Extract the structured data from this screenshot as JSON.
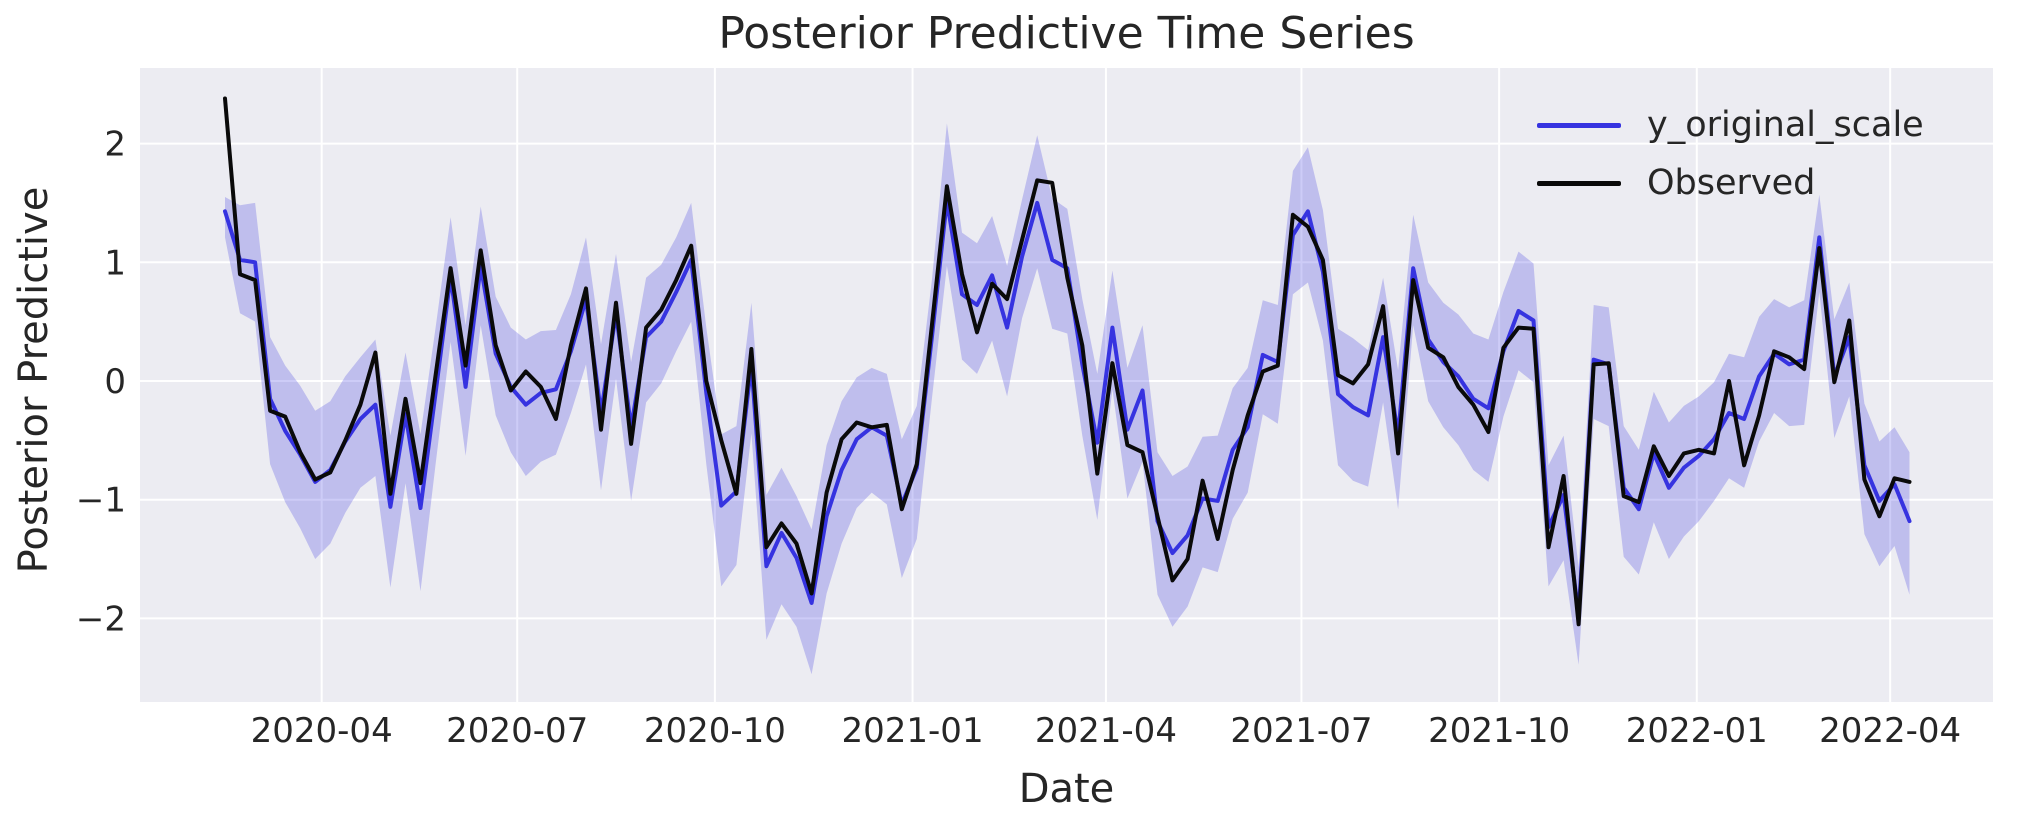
{
  "figure": {
    "title": "Posterior Predictive Time Series",
    "xlabel": "Date",
    "ylabel": "Posterior Predictive"
  },
  "legend": {
    "position": "upper right",
    "items": [
      {
        "label": "y_original_scale",
        "color": "#3633e0"
      },
      {
        "label": "Observed",
        "color": "#0a0a0a"
      }
    ]
  },
  "colors": {
    "plot_background": "#ececf2",
    "gridline": "#ffffff",
    "text": "#262626",
    "mean_line": "#3633e0",
    "observed_line": "#0a0a0a",
    "band_fill": "#3633e0"
  },
  "chart_data": {
    "type": "line",
    "title": "Posterior Predictive Time Series",
    "xlabel": "Date",
    "ylabel": "Posterior Predictive",
    "grid": true,
    "legend_position": "upper right",
    "x_start_date": "2020-02-16",
    "x_step_days": 7,
    "n_points": 113,
    "x_tick_dates": [
      "2020-04-01",
      "2020-07-01",
      "2020-10-01",
      "2021-01-01",
      "2021-04-01",
      "2021-07-01",
      "2021-10-01",
      "2022-01-01",
      "2022-04-01"
    ],
    "x_tick_labels": [
      "2020-04",
      "2020-07",
      "2020-10",
      "2021-01",
      "2021-04",
      "2021-07",
      "2021-10",
      "2022-01",
      "2022-04"
    ],
    "y_ticks": [
      -2,
      -1,
      0,
      1,
      2
    ],
    "y_tick_labels": [
      "−2",
      "−1",
      "0",
      "1",
      "2"
    ],
    "ylim": [
      -2.7,
      2.64
    ],
    "series": [
      {
        "name": "y_original_scale",
        "color": "#3633e0",
        "values": [
          1.43,
          1.02,
          1.0,
          -0.15,
          -0.42,
          -0.62,
          -0.85,
          -0.75,
          -0.51,
          -0.32,
          -0.2,
          -1.06,
          -0.28,
          -1.07,
          -0.1,
          0.88,
          -0.05,
          0.97,
          0.23,
          -0.05,
          -0.2,
          -0.1,
          -0.07,
          0.25,
          0.69,
          -0.27,
          0.57,
          -0.39,
          0.37,
          0.5,
          0.75,
          1.02,
          -0.1,
          -1.05,
          -0.93,
          0.14,
          -1.56,
          -1.28,
          -1.49,
          -1.87,
          -1.14,
          -0.75,
          -0.49,
          -0.39,
          -0.46,
          -1.04,
          -0.73,
          0.37,
          1.52,
          0.73,
          0.64,
          0.89,
          0.45,
          1.05,
          1.5,
          1.02,
          0.95,
          0.14,
          -0.52,
          0.45,
          -0.41,
          -0.08,
          -1.18,
          -1.45,
          -1.3,
          -0.99,
          -1.01,
          -0.58,
          -0.39,
          0.22,
          0.16,
          1.23,
          1.43,
          0.92,
          -0.11,
          -0.22,
          -0.29,
          0.37,
          -0.46,
          0.95,
          0.35,
          0.16,
          0.04,
          -0.15,
          -0.23,
          0.25,
          0.59,
          0.51,
          -1.23,
          -0.96,
          -1.97,
          0.18,
          0.14,
          -0.9,
          -1.08,
          -0.61,
          -0.9,
          -0.73,
          -0.63,
          -0.49,
          -0.27,
          -0.32,
          0.04,
          0.23,
          0.14,
          0.18,
          1.21,
          0.04,
          0.37,
          -0.71,
          -1.01,
          -0.87,
          -1.18
        ]
      },
      {
        "name": "Observed",
        "color": "#0a0a0a",
        "values": [
          2.38,
          0.9,
          0.85,
          -0.25,
          -0.3,
          -0.6,
          -0.83,
          -0.77,
          -0.5,
          -0.2,
          0.24,
          -0.95,
          -0.15,
          -0.86,
          0.05,
          0.95,
          0.13,
          1.1,
          0.3,
          -0.08,
          0.08,
          -0.05,
          -0.32,
          0.3,
          0.78,
          -0.41,
          0.66,
          -0.53,
          0.45,
          0.6,
          0.85,
          1.14,
          0.0,
          -0.5,
          -0.95,
          0.27,
          -1.4,
          -1.2,
          -1.37,
          -1.79,
          -0.94,
          -0.49,
          -0.35,
          -0.39,
          -0.37,
          -1.08,
          -0.7,
          0.47,
          1.64,
          0.9,
          0.41,
          0.82,
          0.69,
          1.19,
          1.69,
          1.67,
          0.87,
          0.3,
          -0.78,
          0.15,
          -0.54,
          -0.6,
          -1.14,
          -1.68,
          -1.5,
          -0.84,
          -1.33,
          -0.75,
          -0.29,
          0.08,
          0.13,
          1.4,
          1.3,
          1.02,
          0.05,
          -0.02,
          0.14,
          0.63,
          -0.61,
          0.85,
          0.28,
          0.2,
          -0.05,
          -0.2,
          -0.43,
          0.28,
          0.45,
          0.44,
          -1.4,
          -0.8,
          -2.05,
          0.14,
          0.15,
          -0.97,
          -1.02,
          -0.55,
          -0.8,
          -0.61,
          -0.58,
          -0.61,
          0.0,
          -0.71,
          -0.29,
          0.25,
          0.2,
          0.1,
          1.12,
          -0.01,
          0.51,
          -0.83,
          -1.14,
          -0.82,
          -0.85
        ]
      }
    ],
    "band": {
      "name": "posterior-hdi-band",
      "attached_to": "y_original_scale",
      "color": "#3633e0",
      "opacity": 0.25,
      "lower_offset": [
        0.22,
        0.45,
        0.5,
        0.55,
        0.6,
        0.62,
        0.65,
        0.62,
        0.6,
        0.58,
        0.6,
        0.68,
        0.58,
        0.7,
        0.6,
        0.55,
        0.58,
        0.5,
        0.52,
        0.55,
        0.6,
        0.58,
        0.55,
        0.52,
        0.55,
        0.65,
        0.55,
        0.62,
        0.55,
        0.52,
        0.5,
        0.52,
        0.6,
        0.68,
        0.62,
        0.58,
        0.62,
        0.6,
        0.58,
        0.6,
        0.65,
        0.62,
        0.58,
        0.55,
        0.58,
        0.62,
        0.6,
        0.52,
        0.55,
        0.55,
        0.58,
        0.55,
        0.58,
        0.52,
        0.55,
        0.58,
        0.55,
        0.6,
        0.65,
        0.52,
        0.58,
        0.6,
        0.62,
        0.62,
        0.6,
        0.58,
        0.6,
        0.58,
        0.55,
        0.5,
        0.52,
        0.5,
        0.6,
        0.58,
        0.6,
        0.62,
        0.6,
        0.55,
        0.62,
        0.48,
        0.52,
        0.55,
        0.58,
        0.6,
        0.62,
        0.55,
        0.5,
        0.52,
        0.5,
        0.55,
        0.42,
        0.5,
        0.52,
        0.58,
        0.55,
        0.58,
        0.6,
        0.58,
        0.55,
        0.52,
        0.55,
        0.58,
        0.55,
        0.5,
        0.52,
        0.55,
        0.46,
        0.52,
        0.5,
        0.58,
        0.55,
        0.52,
        0.62
      ],
      "upper_offset": [
        0.12,
        0.46,
        0.5,
        0.52,
        0.55,
        0.58,
        0.6,
        0.58,
        0.55,
        0.52,
        0.55,
        0.6,
        0.52,
        0.62,
        0.55,
        0.5,
        0.52,
        0.5,
        0.48,
        0.5,
        0.55,
        0.52,
        0.5,
        0.48,
        0.52,
        0.58,
        0.5,
        0.55,
        0.5,
        0.48,
        0.46,
        0.48,
        0.55,
        0.6,
        0.55,
        0.52,
        0.6,
        0.55,
        0.52,
        0.62,
        0.6,
        0.58,
        0.52,
        0.5,
        0.52,
        0.55,
        0.52,
        0.48,
        0.65,
        0.52,
        0.52,
        0.5,
        0.52,
        0.48,
        0.57,
        0.52,
        0.5,
        0.55,
        0.58,
        0.48,
        0.52,
        0.55,
        0.58,
        0.65,
        0.58,
        0.52,
        0.55,
        0.52,
        0.5,
        0.46,
        0.48,
        0.54,
        0.54,
        0.52,
        0.55,
        0.58,
        0.55,
        0.5,
        0.55,
        0.45,
        0.48,
        0.5,
        0.52,
        0.55,
        0.58,
        0.5,
        0.5,
        0.48,
        0.52,
        0.5,
        0.4,
        0.46,
        0.48,
        0.52,
        0.5,
        0.52,
        0.55,
        0.52,
        0.5,
        0.48,
        0.5,
        0.52,
        0.5,
        0.46,
        0.48,
        0.5,
        0.36,
        0.48,
        0.46,
        0.52,
        0.5,
        0.48,
        0.58
      ]
    }
  }
}
